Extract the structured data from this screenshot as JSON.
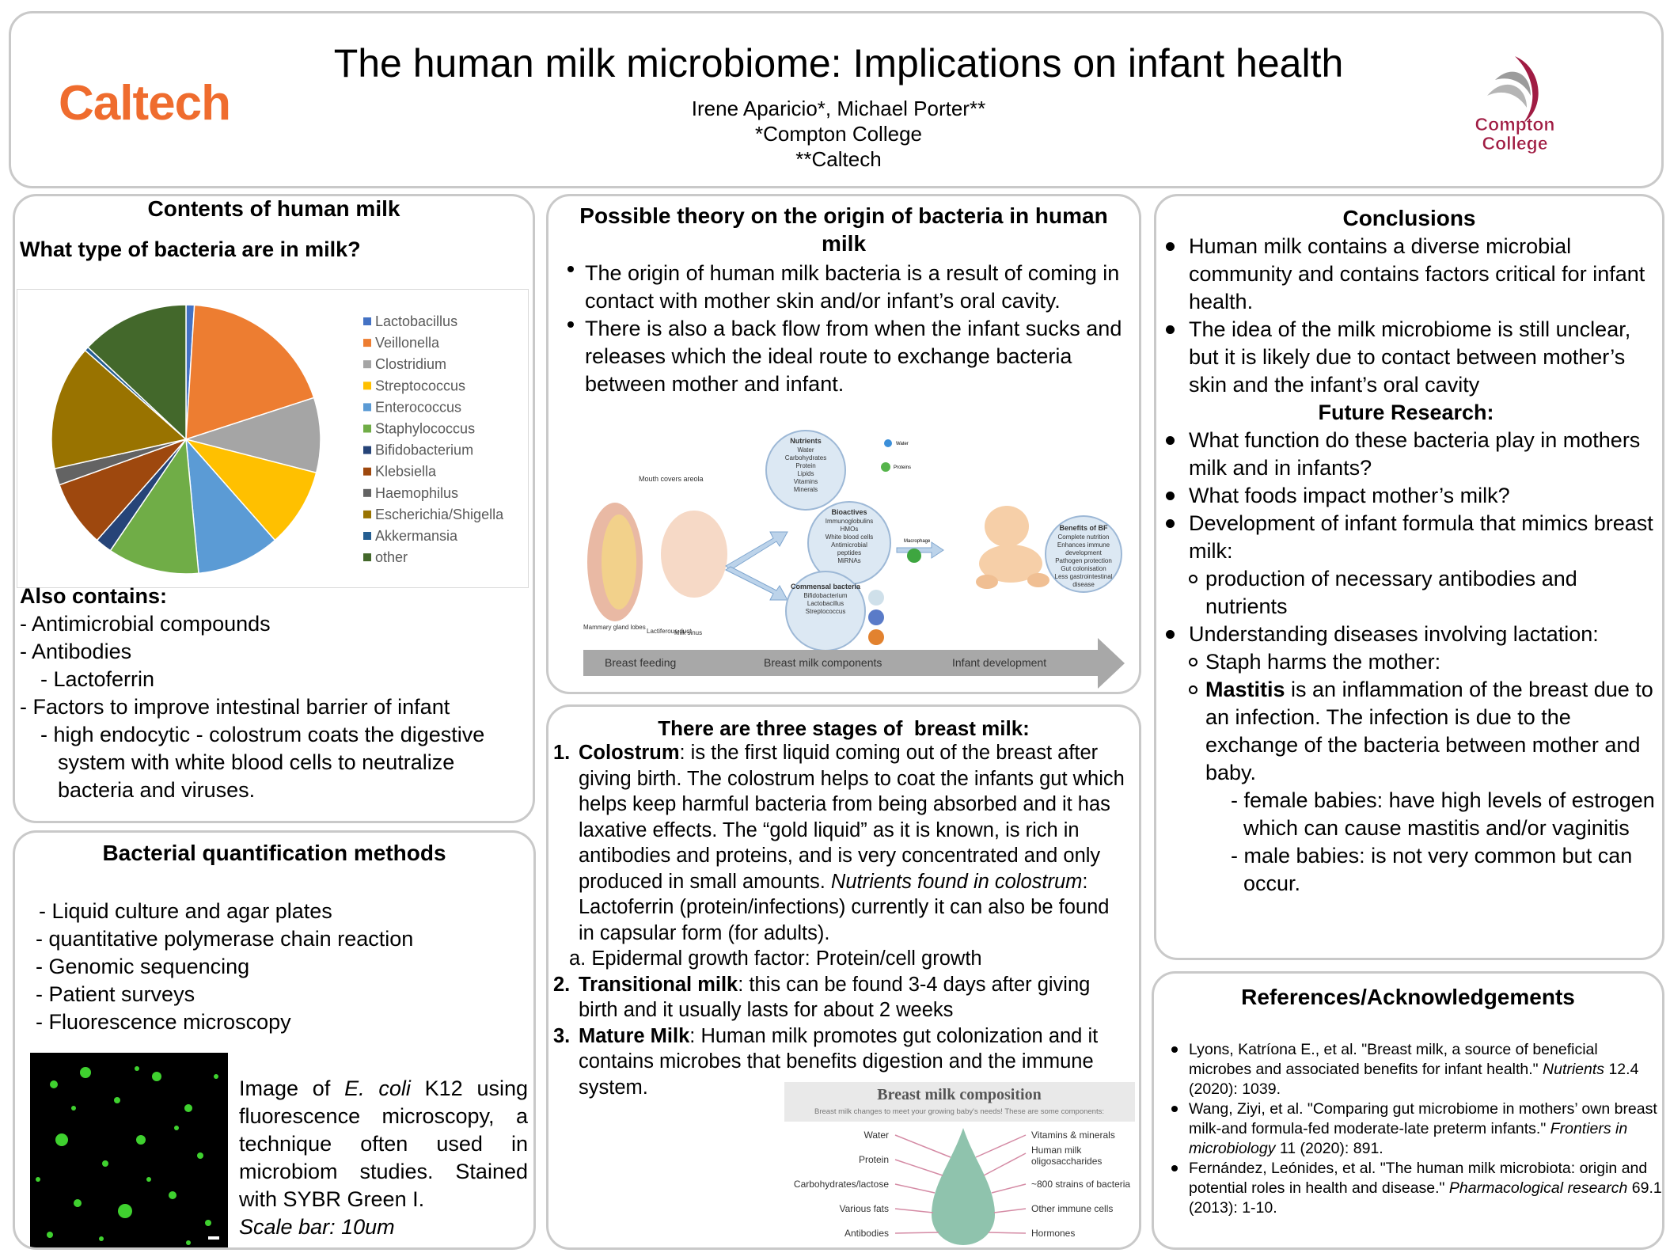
{
  "header": {
    "title": "The human milk microbiome: Implications on infant health",
    "authors": "Irene Aparicio*, Michael Porter**",
    "affiliations": [
      "*Compton College",
      "**Caltech"
    ],
    "logos": [
      "Caltech",
      "Compton",
      "College"
    ]
  },
  "contents": {
    "heading": "Contents of human milk",
    "question": "What type of bacteria are in milk?",
    "also_heading": "Also contains:",
    "items": [
      "- Antimicrobial compounds",
      "- Antibodies",
      "- Lactoferrin",
      "- Factors to improve intestinal barrier of infant",
      "- high endocytic - colostrum coats the digestive system with white blood cells to neutralize bacteria and viruses."
    ]
  },
  "chart_data": {
    "type": "pie",
    "categories": [
      "Lactobacillus",
      "Veillonella",
      "Clostridium",
      "Streptococcus",
      "Enterococcus",
      "Staphylococcus",
      "Bifidobacterium",
      "Klebsiella",
      "Haemophilus",
      "Escherichia/Shigella",
      "Akkermansia",
      "other"
    ],
    "values": [
      1,
      19,
      9,
      9.5,
      10,
      11,
      2,
      8,
      2,
      15,
      0.5,
      13
    ],
    "colors": [
      "#4472c4",
      "#ed7d31",
      "#a5a5a5",
      "#ffc000",
      "#5b9bd5",
      "#70ad47",
      "#264478",
      "#9e480e",
      "#636363",
      "#997300",
      "#255e91",
      "#43682b"
    ],
    "legend": "right"
  },
  "quantification": {
    "heading": "Bacterial quantification methods",
    "methods": [
      "- Liquid culture and agar plates",
      "- quantitative polymerase chain reaction",
      "- Genomic sequencing",
      "- Patient surveys",
      "- Fluorescence microscopy"
    ],
    "caption": {
      "before": "Image of ",
      "organism": "E. coli",
      "after": " K12 using fluorescence microscopy, a technique often used in microbiom studies. Stained with SYBR Green I.",
      "scale": "Scale bar: 10um"
    }
  },
  "origin": {
    "heading": "Possible theory on the origin of bacteria in human milk",
    "bullets": [
      "The origin of human milk bacteria is a result of coming in contact with mother skin and/or infant’s oral cavity.",
      "There is also a back flow from when the infant sucks and releases which the ideal route to exchange bacteria between mother and infant."
    ],
    "figure": {
      "stages": [
        "Breast feeding",
        "Breast milk components",
        "Infant development"
      ],
      "anatomy": [
        "Mouth covers areola",
        "Mammary gland lobes",
        "Lactiferous duct",
        "Milk sinus"
      ],
      "nutrients": {
        "title": "Nutrients",
        "items": [
          "Water",
          "Carbohydrates",
          "Protein",
          "Lipids",
          "Vitamins",
          "Minerals"
        ]
      },
      "bioactives": {
        "title": "Bioactives",
        "items": [
          "Immunoglobulins",
          "HMOs",
          "White blood cells",
          "Antimicrobial",
          "peptides",
          "MiRNAs"
        ]
      },
      "commensal": {
        "title": "Commensal bacteria",
        "items": [
          "Bifidobacterium",
          "Lactobacillus",
          "Streptococcus"
        ]
      },
      "benefits": {
        "title": "Benefits of BF",
        "items": [
          "Complete nutrition",
          "Enhances immune",
          "development",
          "Pathogen protection",
          "Gut colonisation",
          "Less gastrointestinal",
          "disease"
        ]
      },
      "icons": [
        "Water",
        "Proteins",
        "Macrophage"
      ]
    }
  },
  "stages": {
    "heading": "There are three stages of  breast milk:",
    "items": [
      {
        "marker": "1.",
        "term": "Colostrum",
        "text": ": is the first liquid coming out of the breast after giving birth. The colostrum helps to coat the infants gut which helps keep harmful bacteria from being absorbed and it has laxative effects. The “gold liquid” as it is known, is rich in antibodies and proteins, and is very concentrated and only produced in small amounts. ",
        "note": "Nutrients found in colostrum",
        "note_text": ": Lactoferrin (protein/infections) currently it can also be found in capsular form (for adults).",
        "sub": {
          "marker": "a.",
          "text": "Epidermal growth factor: Protein/cell growth"
        }
      },
      {
        "marker": "2.",
        "term": "Transitional milk",
        "text": ": this can be found 3-4 days after giving birth and it usually lasts for about 2 weeks"
      },
      {
        "marker": "3.",
        "term": "Mature Milk",
        "text": ": Human milk promotes gut colonization and it contains microbes that benefits digestion and the immune system."
      }
    ],
    "figure": {
      "title": "Breast milk composition",
      "subtitle": "Breast milk changes to meet your growing baby's needs!  These are some components:",
      "left": [
        "Water",
        "Protein",
        "Carbohydrates/lactose",
        "Various fats",
        "Antibodies"
      ],
      "right": [
        "Vitamins & minerals",
        "Human milk",
        "oligosaccharides",
        "~800 strains of bacteria",
        "Other immune cells",
        "Hormones"
      ]
    }
  },
  "conclusions": {
    "heading": "Conclusions",
    "bullets": [
      "Human milk contains a diverse microbial community and contains factors critical for infant health.",
      "The idea of the milk microbiome is still unclear, but it is likely due to contact between mother’s skin and the infant’s oral cavity"
    ],
    "future_heading": "Future Research:",
    "future": [
      "What function do these bacteria play in mothers milk and in infants?",
      "What foods impact mother’s milk?",
      "Development of infant formula that mimics breast milk:",
      "Understanding diseases involving lactation:"
    ],
    "formula_sub": "production of necessary antibodies and nutrients",
    "staph": "Staph harms the mother:",
    "mastitis": {
      "term": "Mastitis",
      "text": " is an inflammation of the breast due to an infection. The infection is due to the exchange of the bacteria between mother and baby."
    },
    "babies": [
      "- female babies: have high levels of estrogen which can cause mastitis and/or vaginitis",
      "- male babies: is not very common but can occur."
    ]
  },
  "references": {
    "heading": "References/Acknowledgements",
    "items": [
      {
        "text": "Lyons, Katríona E., et al. \"Breast milk, a source of beneficial microbes and associated benefits for infant health.\" ",
        "journal": "Nutrients",
        "details": " 12.4 (2020): 1039."
      },
      {
        "text": "Wang, Ziyi, et al. \"Comparing gut microbiome in mothers’ own breast milk-and formula-fed moderate-late preterm infants.\" ",
        "journal": "Frontiers in microbiology",
        "details": " 11 (2020): 891."
      },
      {
        "text": "Fernández, Leónides, et al. \"The human milk microbiota: origin and potential roles in health and disease.\" ",
        "journal": "Pharmacological research",
        "details": " 69.1 (2013): 1-10."
      }
    ]
  }
}
